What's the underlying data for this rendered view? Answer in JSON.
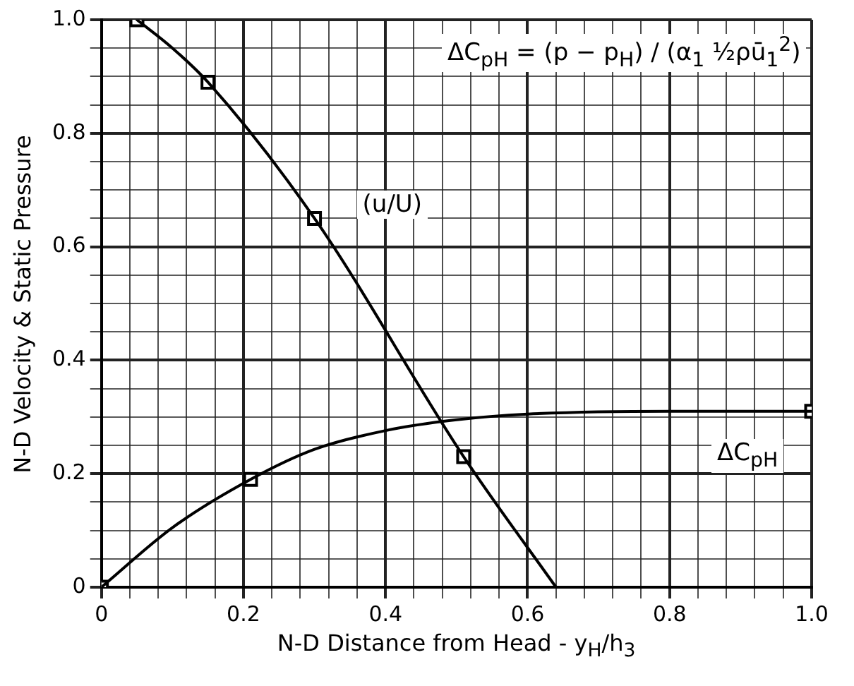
{
  "chart_data": {
    "type": "line",
    "xlabel": "N-D Distance from Head - y$_{H}$/h$_{3}$",
    "ylabel": "N-D Velocity & Static Pressure",
    "xlim": [
      0,
      1.0
    ],
    "ylim": [
      0,
      1.0
    ],
    "xticks": [
      0,
      {
        "value": 0.04,
        "label": null
      },
      {
        "value": 0.08,
        "label": null
      },
      {
        "value": 0.12,
        "label": null
      },
      {
        "value": 0.16,
        "label": null
      },
      0.2,
      {
        "value": 0.24,
        "label": null
      },
      {
        "value": 0.28,
        "label": null
      },
      {
        "value": 0.32,
        "label": null
      },
      {
        "value": 0.36,
        "label": null
      },
      0.4,
      {
        "value": 0.44,
        "label": null
      },
      {
        "value": 0.48,
        "label": null
      },
      {
        "value": 0.52,
        "label": null
      },
      {
        "value": 0.56,
        "label": null
      },
      0.6,
      {
        "value": 0.64,
        "label": null
      },
      {
        "value": 0.68,
        "label": null
      },
      {
        "value": 0.72,
        "label": null
      },
      {
        "value": 0.76,
        "label": null
      },
      0.8,
      {
        "value": 0.84,
        "label": null
      },
      {
        "value": 0.88,
        "label": null
      },
      {
        "value": 0.92,
        "label": null
      },
      {
        "value": 0.96,
        "label": null
      },
      {
        "value": 1.0,
        "label": "1.0"
      }
    ],
    "yticks": [
      0,
      {
        "value": 0.05,
        "label": null
      },
      {
        "value": 0.1,
        "label": null
      },
      {
        "value": 0.15,
        "label": null
      },
      0.2,
      {
        "value": 0.25,
        "label": null
      },
      {
        "value": 0.3,
        "label": null
      },
      {
        "value": 0.35,
        "label": null
      },
      0.4,
      {
        "value": 0.45,
        "label": null
      },
      {
        "value": 0.5,
        "label": null
      },
      {
        "value": 0.55,
        "label": null
      },
      0.6,
      {
        "value": 0.65,
        "label": null
      },
      {
        "value": 0.7,
        "label": null
      },
      {
        "value": 0.75,
        "label": null
      },
      0.8,
      {
        "value": 0.85,
        "label": null
      },
      {
        "value": 0.9,
        "label": null
      },
      {
        "value": 0.95,
        "label": null
      },
      {
        "value": 1.0,
        "label": "1.0"
      }
    ],
    "grid": true,
    "legend": false,
    "annotations": [
      "ΔC$_{pH}$ = (p − p$_{H}$) / (α$_{1}$ ½ρū$_{1}$$^{2}$)"
    ],
    "series": [
      {
        "name": "(u/U)",
        "type": "line",
        "marker": "none",
        "color": "#000000",
        "x": [
          0.05,
          0.1,
          0.15,
          0.3,
          0.51,
          0.64
        ],
        "values": [
          1.0,
          0.95,
          0.89,
          0.65,
          0.23,
          0
        ]
      },
      {
        "type": "scatter",
        "marker": "square",
        "color": "#000000",
        "x": [
          0.05,
          0.15,
          0.3,
          0.51
        ],
        "values": [
          1.0,
          0.89,
          0.65,
          0.23
        ]
      },
      {
        "name": "ΔC$_{pH}$",
        "type": "line",
        "marker": "none",
        "color": "#000000",
        "x": [
          0,
          0.1,
          0.21,
          0.3,
          0.4,
          0.5,
          0.6,
          0.8,
          1.0
        ],
        "values": [
          0,
          0.105,
          0.19,
          0.243,
          0.276,
          0.295,
          0.305,
          0.31,
          0.31
        ]
      },
      {
        "type": "scatter",
        "marker": "square",
        "color": "#000000",
        "x": [
          0,
          0.21,
          1.0
        ],
        "values": [
          0,
          0.19,
          0.31
        ]
      }
    ]
  }
}
